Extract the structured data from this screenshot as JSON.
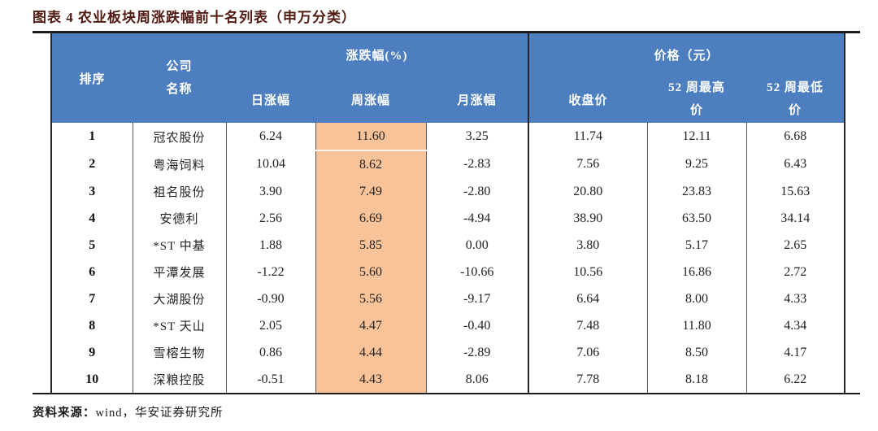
{
  "figure": {
    "title": "图表 4 农业板块周涨跌幅前十名列表（申万分类）",
    "source_label": "资料来源：",
    "source_text": "wind，华安证券研究所"
  },
  "colors": {
    "header_bg": "#4d7ebf",
    "highlight_bg": "#f8c399",
    "frame": "#262626"
  },
  "table": {
    "headers": {
      "rank": "排序",
      "company": "公司\n名称",
      "change_group": "涨跌幅(%)",
      "price_group": "价格（元）",
      "daily": "日涨幅",
      "weekly": "周涨幅",
      "monthly": "月涨幅",
      "close": "收盘价",
      "high52": "52 周最高\n价",
      "low52": "52 周最低\n价"
    },
    "rows": [
      {
        "rank": "1",
        "company": "冠农股份",
        "daily": "6.24",
        "weekly": "11.60",
        "monthly": "3.25",
        "close": "11.74",
        "high52": "12.11",
        "low52": "6.68"
      },
      {
        "rank": "2",
        "company": "粤海饲料",
        "daily": "10.04",
        "weekly": "8.62",
        "monthly": "-2.83",
        "close": "7.56",
        "high52": "9.25",
        "low52": "6.43"
      },
      {
        "rank": "3",
        "company": "祖名股份",
        "daily": "3.90",
        "weekly": "7.49",
        "monthly": "-2.80",
        "close": "20.80",
        "high52": "23.83",
        "low52": "15.63"
      },
      {
        "rank": "4",
        "company": "安德利",
        "daily": "2.56",
        "weekly": "6.69",
        "monthly": "-4.94",
        "close": "38.90",
        "high52": "63.50",
        "low52": "34.14"
      },
      {
        "rank": "5",
        "company": "*ST 中基",
        "daily": "1.88",
        "weekly": "5.85",
        "monthly": "0.00",
        "close": "3.80",
        "high52": "5.17",
        "low52": "2.65"
      },
      {
        "rank": "6",
        "company": "平潭发展",
        "daily": "-1.22",
        "weekly": "5.60",
        "monthly": "-10.66",
        "close": "10.56",
        "high52": "16.86",
        "low52": "2.72"
      },
      {
        "rank": "7",
        "company": "大湖股份",
        "daily": "-0.90",
        "weekly": "5.56",
        "monthly": "-9.17",
        "close": "6.64",
        "high52": "8.00",
        "low52": "4.33"
      },
      {
        "rank": "8",
        "company": "*ST 天山",
        "daily": "2.05",
        "weekly": "4.47",
        "monthly": "-0.40",
        "close": "7.48",
        "high52": "11.80",
        "low52": "4.34"
      },
      {
        "rank": "9",
        "company": "雪榕生物",
        "daily": "0.86",
        "weekly": "4.44",
        "monthly": "-2.89",
        "close": "7.06",
        "high52": "8.50",
        "low52": "4.17"
      },
      {
        "rank": "10",
        "company": "深粮控股",
        "daily": "-0.51",
        "weekly": "4.43",
        "monthly": "8.06",
        "close": "7.78",
        "high52": "8.18",
        "low52": "6.22"
      }
    ]
  }
}
